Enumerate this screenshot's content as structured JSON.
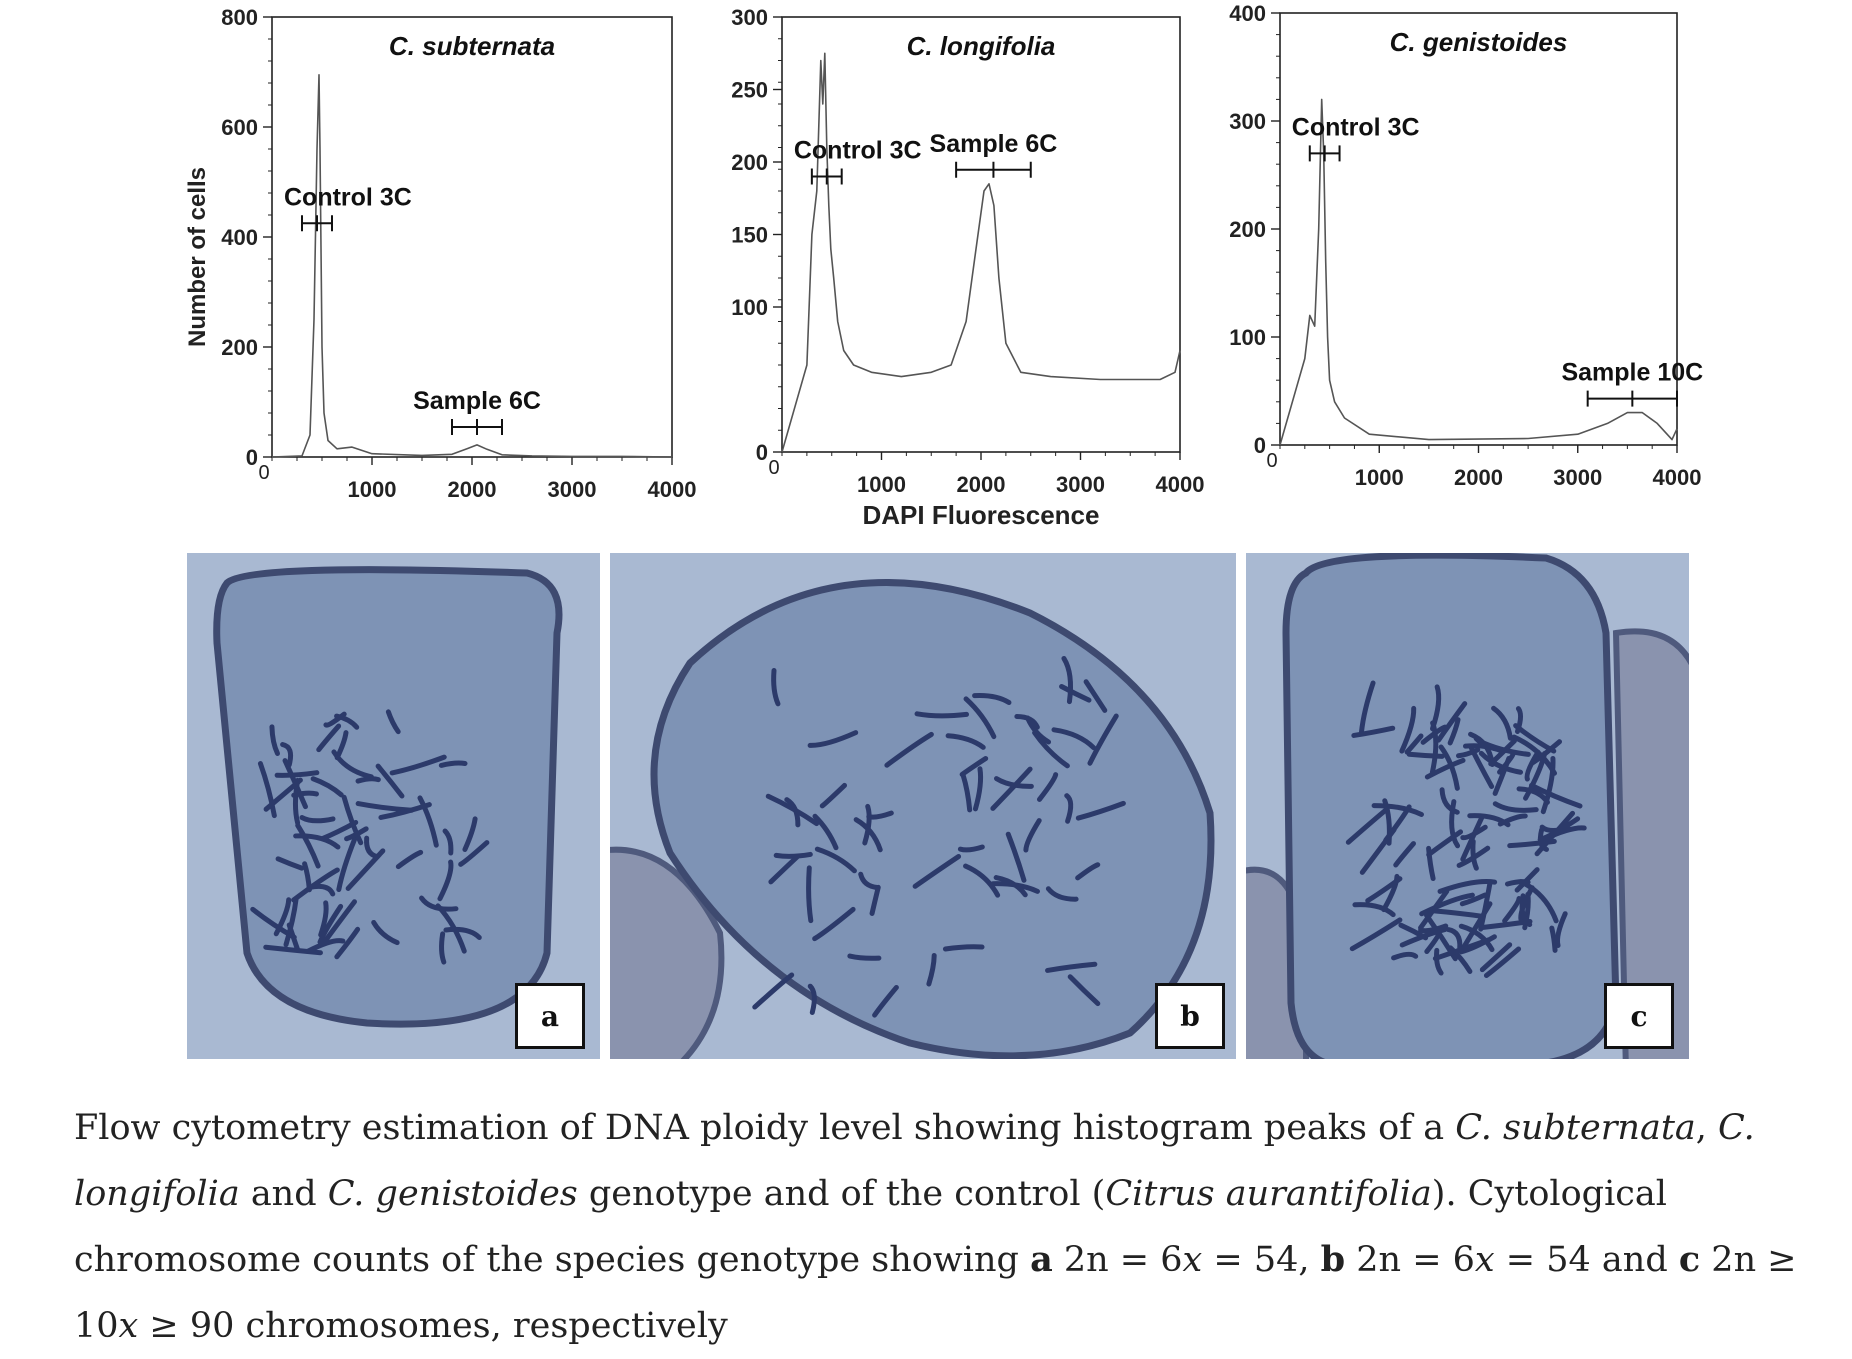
{
  "chart_data": [
    {
      "type": "area",
      "title": "C. subternata",
      "ylabel": "Number of cells",
      "xlabel": "",
      "xlim": [
        0,
        4000
      ],
      "ylim": [
        0,
        800
      ],
      "xticks": [
        "1000",
        "2000",
        "3000",
        "4000"
      ],
      "yticks": [
        "0",
        "200",
        "400",
        "600",
        "800"
      ],
      "x": [
        0,
        300,
        380,
        420,
        450,
        470,
        480,
        490,
        500,
        520,
        560,
        650,
        800,
        1000,
        1500,
        1800,
        1950,
        2050,
        2150,
        2300,
        2600,
        3000,
        3500,
        4000
      ],
      "y": [
        0,
        2,
        40,
        250,
        560,
        695,
        560,
        380,
        200,
        80,
        30,
        15,
        18,
        6,
        3,
        5,
        15,
        22,
        14,
        4,
        2,
        1,
        1,
        0
      ],
      "annotations": [
        {
          "text": "Control 3C",
          "range": [
            300,
            600
          ]
        },
        {
          "text": "Sample 6C",
          "range": [
            1800,
            2300
          ]
        }
      ]
    },
    {
      "type": "area",
      "title": "C. longifolia",
      "ylabel": "",
      "xlabel": "DAPI Fluorescence",
      "xlim": [
        0,
        4000
      ],
      "ylim": [
        0,
        300
      ],
      "xticks": [
        "1000",
        "2000",
        "3000",
        "4000"
      ],
      "yticks": [
        "0",
        "100",
        "150",
        "200",
        "250",
        "300"
      ],
      "x": [
        0,
        250,
        300,
        350,
        390,
        410,
        430,
        450,
        470,
        490,
        520,
        560,
        620,
        720,
        900,
        1200,
        1500,
        1700,
        1850,
        1950,
        2030,
        2080,
        2130,
        2180,
        2250,
        2400,
        2700,
        3200,
        3800,
        3950,
        4000
      ],
      "y": [
        0,
        60,
        150,
        180,
        270,
        240,
        275,
        210,
        170,
        140,
        120,
        90,
        70,
        60,
        55,
        52,
        55,
        60,
        90,
        140,
        180,
        185,
        170,
        120,
        75,
        55,
        52,
        50,
        50,
        55,
        70
      ],
      "annotations": [
        {
          "text": "Control 3C",
          "range": [
            300,
            600
          ]
        },
        {
          "text": "Sample 6C",
          "range": [
            1750,
            2500
          ]
        }
      ]
    },
    {
      "type": "area",
      "title": "C. genistoides",
      "ylabel": "",
      "xlabel": "",
      "xlim": [
        0,
        4000
      ],
      "ylim": [
        0,
        400
      ],
      "xticks": [
        "1000",
        "2000",
        "3000",
        "4000"
      ],
      "yticks": [
        "0",
        "100",
        "200",
        "300",
        "400"
      ],
      "x": [
        0,
        250,
        300,
        350,
        390,
        420,
        440,
        460,
        480,
        500,
        550,
        650,
        900,
        1500,
        2500,
        3000,
        3300,
        3500,
        3650,
        3800,
        3950,
        4000
      ],
      "y": [
        0,
        80,
        120,
        110,
        200,
        320,
        270,
        170,
        100,
        60,
        40,
        25,
        10,
        5,
        6,
        10,
        20,
        30,
        30,
        20,
        5,
        15
      ],
      "annotations": [
        {
          "text": "Control 3C",
          "range": [
            300,
            600
          ]
        },
        {
          "text": "Sample 10C",
          "range": [
            3100,
            4000
          ]
        }
      ]
    }
  ],
  "panels": {
    "a": "a",
    "b": "b",
    "c": "c"
  },
  "caption": {
    "t1": "Flow cytometry estimation of DNA ploidy level showing histogram peaks of a ",
    "sp1": "C. subternata",
    "t2": ", ",
    "sp2": "C. longifolia",
    "t3": " and ",
    "sp3": "C. genistoides",
    "t4": " genotype and of the control (",
    "sp4": "Citrus aurantifolia",
    "t5": "). Cytological chromosome counts of the species genotype showing ",
    "a": "a",
    "t6": " 2n = 6",
    "x1": "x",
    "t7": " = 54, ",
    "b": "b",
    "t8": " 2n = 6",
    "x2": "x",
    "t9": " = 54 and ",
    "c": "c",
    "t10": " 2n ≥ 10",
    "x3": "x",
    "t11": " ≥ 90 chromosomes, respectively"
  },
  "colors": {
    "line": "#555555",
    "axis": "#222222",
    "cell": "#7e93b5",
    "background": "#a9b9d2",
    "chromosome": "#2c3a6a"
  }
}
